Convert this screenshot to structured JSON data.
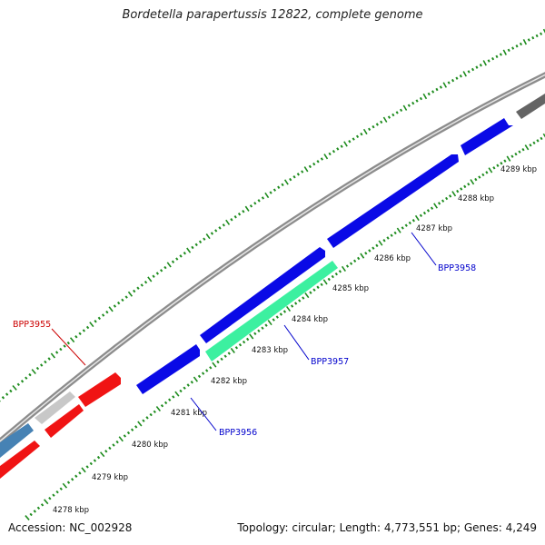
{
  "title": "Bordetella parapertussis 12822, complete genome",
  "accession": "Accession: NC_002928",
  "summary": "Topology: circular; Length: 4,773,551 bp; Genes: 4,249",
  "colors": {
    "backbone": "#8c8c8c",
    "tick": "#1e8c1e",
    "gene_blue": "#0a0ae6",
    "gene_red": "#f01414",
    "gene_mint": "#3cf0a0",
    "gene_gray_light": "#c8c8c8",
    "gene_gray_dark": "#646464",
    "gene_steel": "#4682b4",
    "label_blue": "#0000cc",
    "label_red": "#cc0000"
  },
  "kbp_labels": [
    "4278 kbp",
    "4279 kbp",
    "4280 kbp",
    "4281 kbp",
    "4282 kbp",
    "4283 kbp",
    "4284 kbp",
    "4285 kbp",
    "4286 kbp",
    "4287 kbp",
    "4288 kbp",
    "4289 kbp"
  ],
  "gene_labels": [
    {
      "text": "BPP3955",
      "color": "red"
    },
    {
      "text": "BPP3956",
      "color": "blue"
    },
    {
      "text": "BPP3957",
      "color": "blue"
    },
    {
      "text": "BPP3958",
      "color": "blue"
    }
  ]
}
